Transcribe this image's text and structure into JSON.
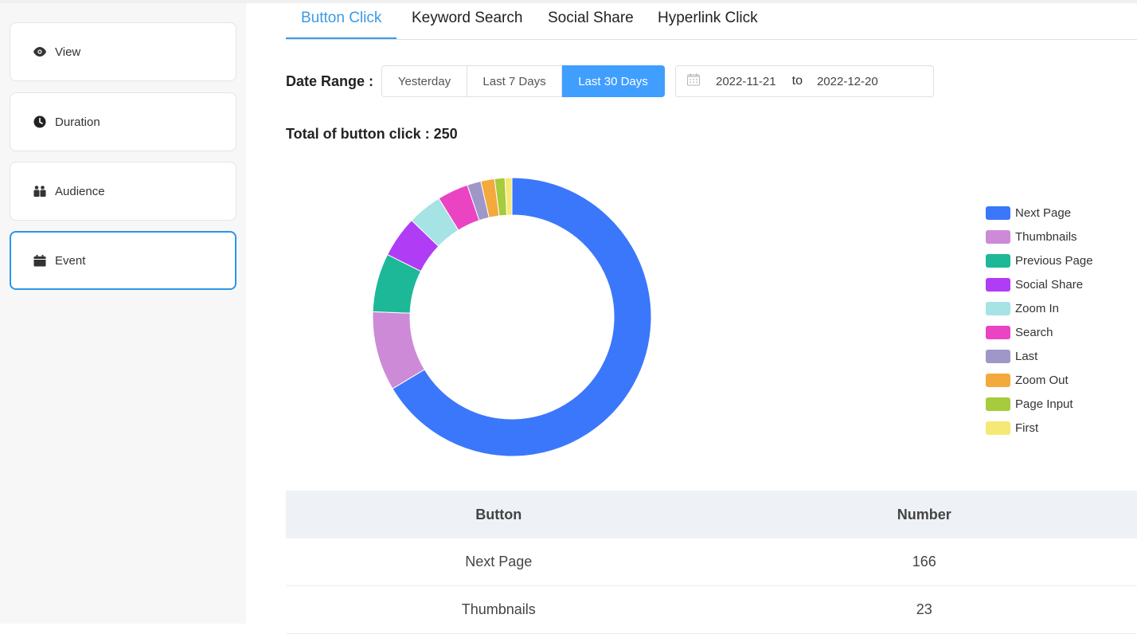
{
  "sidebar": {
    "items": [
      {
        "label": "View",
        "icon": "eye-icon"
      },
      {
        "label": "Duration",
        "icon": "clock-icon"
      },
      {
        "label": "Audience",
        "icon": "people-icon"
      },
      {
        "label": "Event",
        "icon": "calendar-icon"
      }
    ],
    "active": "Event"
  },
  "tabs": [
    {
      "label": "Button Click"
    },
    {
      "label": "Keyword Search"
    },
    {
      "label": "Social Share"
    },
    {
      "label": "Hyperlink Click"
    }
  ],
  "date_range": {
    "label": "Date Range :",
    "options": [
      "Yesterday",
      "Last 7 Days",
      "Last 30 Days"
    ],
    "selected": "Last 30 Days",
    "start": "2022-11-21",
    "separator": "to",
    "end": "2022-12-20"
  },
  "total_text": "Total of button click : 250",
  "chart_data": {
    "type": "pie",
    "donut": true,
    "legend_position": "right",
    "categories": [
      "Next Page",
      "Thumbnails",
      "Previous Page",
      "Social Share",
      "Zoom In",
      "Search",
      "Last",
      "Zoom Out",
      "Page Input",
      "First"
    ],
    "values": [
      166,
      23,
      17,
      12,
      10,
      9,
      4,
      4,
      3,
      2
    ],
    "colors": [
      "#3b77fb",
      "#cd8ad7",
      "#1db898",
      "#b03cf5",
      "#a5e3e5",
      "#ea44c3",
      "#9e97c8",
      "#f4a93d",
      "#a6cb3c",
      "#f5e876"
    ]
  },
  "table": {
    "headers": [
      "Button",
      "Number"
    ],
    "rows": [
      [
        "Next Page",
        "166"
      ],
      [
        "Thumbnails",
        "23"
      ]
    ]
  },
  "colors": {
    "accent": "#409eff",
    "tab_active": "#3b9ae6",
    "sidebar_active_border": "#2b95e8"
  }
}
